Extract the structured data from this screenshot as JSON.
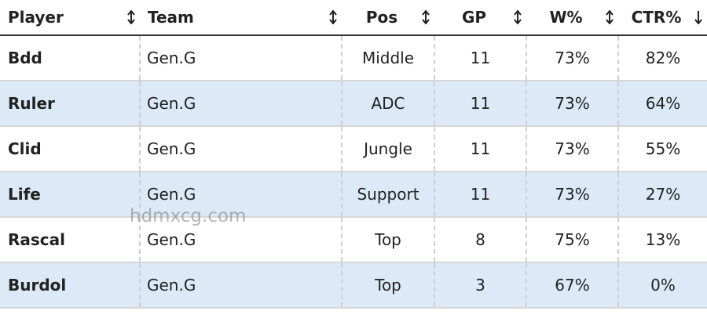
{
  "table": {
    "columns": [
      "Player",
      "Team",
      "Pos",
      "GP",
      "W%",
      "CTR%"
    ],
    "rows": [
      [
        "Bdd",
        "Gen.G",
        "Middle",
        "11",
        "73%",
        "82%"
      ],
      [
        "Ruler",
        "Gen.G",
        "ADC",
        "11",
        "73%",
        "64%"
      ],
      [
        "Clid",
        "Gen.G",
        "Jungle",
        "11",
        "73%",
        "55%"
      ],
      [
        "Life",
        "Gen.G",
        "Support",
        "11",
        "73%",
        "27%"
      ],
      [
        "Rascal",
        "Gen.G",
        "Top",
        "8",
        "75%",
        "13%"
      ],
      [
        "Burdol",
        "Gen.G",
        "Top",
        "3",
        "67%",
        "0%"
      ]
    ],
    "sort": {
      "column": 5,
      "order": "descending"
    }
  },
  "watermark": "hdmxcg.com"
}
